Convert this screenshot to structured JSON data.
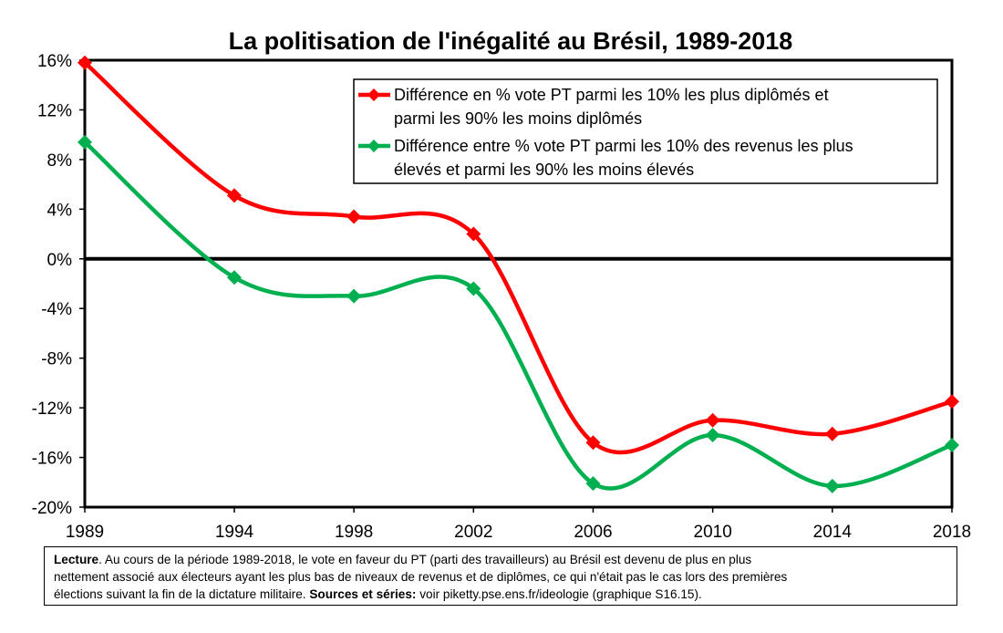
{
  "chart_data": {
    "type": "line",
    "title": "La politisation de l'inégalité au Brésil, 1989-2018",
    "x": [
      1989,
      1994,
      1998,
      2002,
      2006,
      2010,
      2014,
      2018
    ],
    "x_tick_labels": [
      "1989",
      "1994",
      "1998",
      "2002",
      "2006",
      "2010",
      "2014",
      "2018"
    ],
    "y_tick_values": [
      16,
      12,
      8,
      4,
      0,
      -4,
      -8,
      -12,
      -16,
      -20
    ],
    "y_tick_labels": [
      "16%",
      "12%",
      "8%",
      "4%",
      "0%",
      "-4%",
      "-8%",
      "-12%",
      "-16%",
      "-20%"
    ],
    "ylim": [
      -20,
      16
    ],
    "y_unit": "%",
    "grid": false,
    "zero_line": true,
    "legend_position": "top-right",
    "series": [
      {
        "name_lines": [
          "Différence en % vote PT parmi les 10% les plus diplômés et",
          "parmi les 90% les moins diplômés"
        ],
        "color": "#ff0000",
        "marker": "diamond",
        "values": [
          15.8,
          5.1,
          3.4,
          2.0,
          -14.8,
          -13.0,
          -14.1,
          -11.5
        ]
      },
      {
        "name_lines": [
          "Différence entre % vote PT parmi les 10% des revenus les plus",
          "élevés et parmi les 90% les moins élevés"
        ],
        "color": "#00b050",
        "marker": "diamond",
        "values": [
          9.4,
          -1.5,
          -3.0,
          -2.4,
          -18.1,
          -14.2,
          -18.3,
          -15.0
        ]
      }
    ]
  },
  "lecture": {
    "label": "Lecture",
    "text_line1": ". Au cours de la période 1989-2018, le vote en faveur du PT (parti des travailleurs) au Brésil est devenu de plus en plus",
    "text_line2": "nettement associé aux électeurs ayant les plus bas de niveaux de revenus et de diplômes, ce qui n'était pas le cas lors des premières",
    "text_line3": "élections suivant la fin de la dictature militaire. ",
    "sources_label": "Sources et séries:",
    "sources_text": " voir piketty.pse.ens.fr/ideologie (graphique S16.15)."
  }
}
